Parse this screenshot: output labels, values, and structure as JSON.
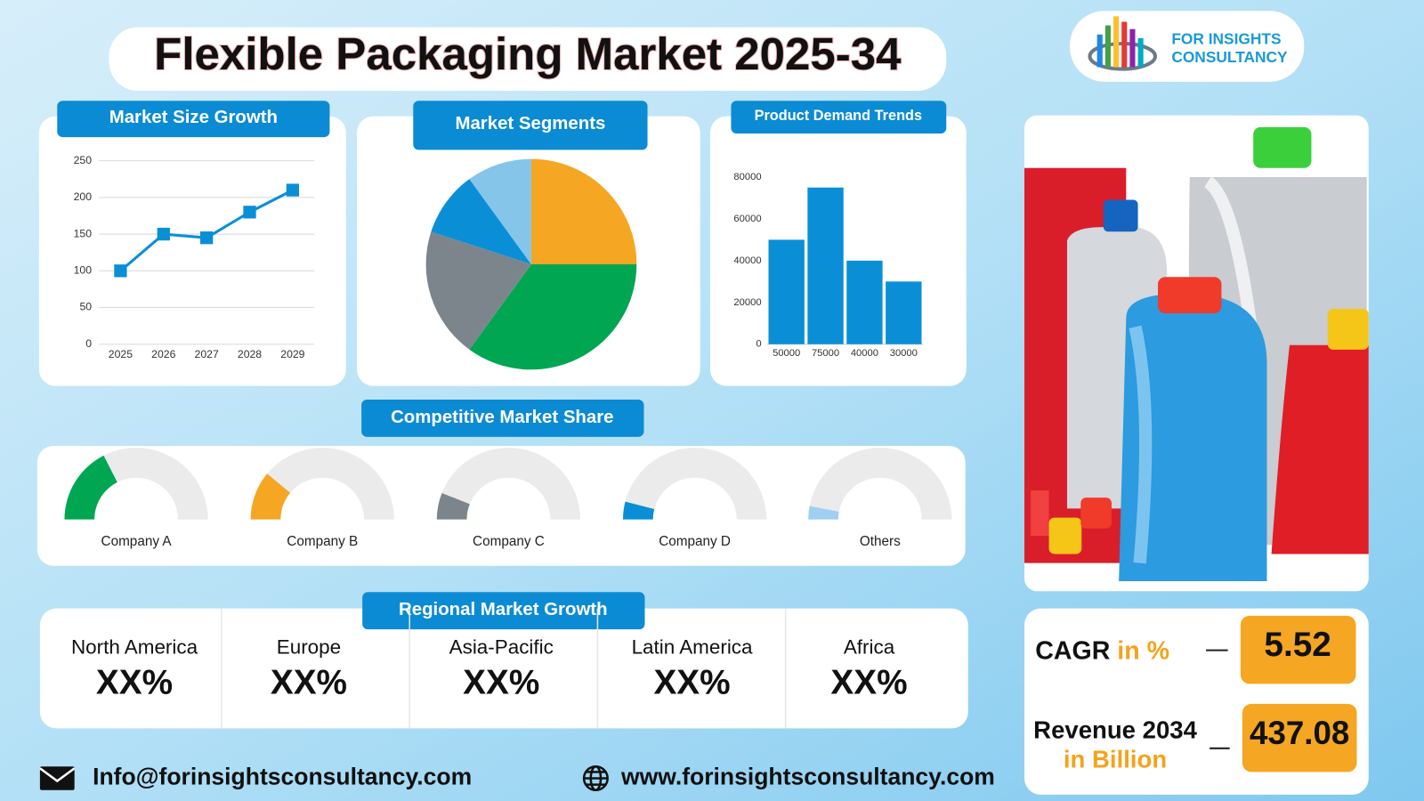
{
  "title": "Flexible Packaging Market 2025-34",
  "logo": {
    "line1": "FOR INSIGHTS",
    "line2": "CONSULTANCY"
  },
  "chart_data": [
    {
      "type": "line",
      "title": "Market Size Growth",
      "categories": [
        "2025",
        "2026",
        "2027",
        "2028",
        "2029"
      ],
      "values": [
        100,
        150,
        145,
        180,
        210
      ],
      "color": "#0a8fd6",
      "ylim": [
        0,
        250
      ],
      "yticks": [
        0,
        50,
        100,
        150,
        200,
        250
      ],
      "grid": true
    },
    {
      "type": "pie",
      "title": "Market Segments",
      "values": [
        25,
        35,
        20,
        10,
        10
      ],
      "colors": [
        "#f5a623",
        "#00a651",
        "#7d858c",
        "#0a8fd6",
        "#86c5ea"
      ]
    },
    {
      "type": "bar",
      "title": "Product Demand Trends",
      "categories": [
        "50000",
        "75000",
        "40000",
        "30000"
      ],
      "values": [
        50000,
        75000,
        40000,
        30000
      ],
      "color": "#0a8fd6",
      "ylim": [
        0,
        80000
      ],
      "yticks": [
        0,
        20000,
        40000,
        60000,
        80000
      ],
      "grid": false
    },
    {
      "type": "gauge",
      "title": "Competitive Market Share",
      "categories": [
        "Company A",
        "Company B",
        "Company C",
        "Company D",
        "Others"
      ],
      "values": [
        35,
        22,
        12,
        8,
        6
      ],
      "colors": [
        "#00a651",
        "#f5a623",
        "#7d858c",
        "#0a8fd6",
        "#9fd0f2"
      ],
      "ylim": [
        0,
        100
      ]
    }
  ],
  "regional": {
    "title": "Regional Market Growth",
    "regions": [
      {
        "name": "North America",
        "value": "XX%"
      },
      {
        "name": "Europe",
        "value": "XX%"
      },
      {
        "name": "Asia-Pacific",
        "value": "XX%"
      },
      {
        "name": "Latin America",
        "value": "XX%"
      },
      {
        "name": "Africa",
        "value": "XX%"
      }
    ]
  },
  "stats": {
    "cagr_label": "CAGR",
    "cagr_unit": "in %",
    "cagr_value": 5.52,
    "revenue_label": "Revenue 2034",
    "revenue_unit": "in Billion",
    "revenue_value": 437.08
  },
  "contact": {
    "email": "Info@forinsightsconsultancy.com",
    "website": "www.forinsightsconsultancy.com"
  }
}
